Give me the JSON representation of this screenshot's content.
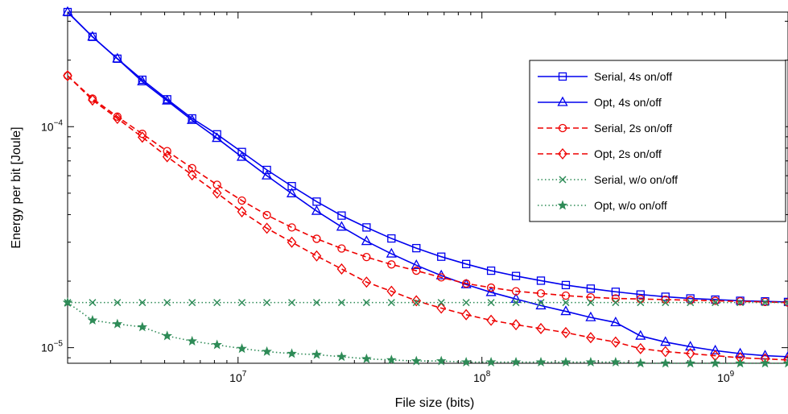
{
  "chart_data": {
    "type": "line",
    "title": "",
    "xlabel": "File size (bits)",
    "ylabel": "Energy per bit [Joule]",
    "xscale": "log",
    "yscale": "log",
    "xlim": [
      2000000,
      1800000000
    ],
    "ylim": [
      8.5e-06,
      0.00033
    ],
    "grid": false,
    "legend_position": "top-right",
    "x_ticks": [
      {
        "value": 10000000,
        "base": "10",
        "exp": "7"
      },
      {
        "value": 100000000,
        "base": "10",
        "exp": "8"
      },
      {
        "value": 1000000000,
        "base": "10",
        "exp": "9"
      }
    ],
    "y_ticks": [
      {
        "value": 1e-05,
        "base": "10",
        "exp": "−5"
      },
      {
        "value": 0.0001,
        "base": "10",
        "exp": "−4"
      }
    ],
    "x": [
      2000000,
      2530000,
      3200000,
      4050000,
      5120000,
      6480000,
      8200000,
      10370000,
      13130000,
      16610000,
      21010000,
      26590000,
      33640000,
      42560000,
      53850000,
      68130000,
      86190000,
      109050000,
      137970000,
      174560000,
      220850000,
      279410000,
      353500000,
      447250000,
      565840000,
      715880000,
      905710000,
      1145900000,
      1449700000,
      1800000000
    ],
    "series": [
      {
        "name": "Serial, 4s on/off",
        "color": "#0000ee",
        "dash": "solid",
        "marker": "square",
        "values": [
          0.00033,
          0.000255,
          0.000203,
          0.000163,
          0.000133,
          0.000109,
          9.23e-05,
          7.68e-05,
          6.37e-05,
          5.38e-05,
          4.58e-05,
          3.96e-05,
          3.5e-05,
          3.12e-05,
          2.82e-05,
          2.58e-05,
          2.39e-05,
          2.23e-05,
          2.11e-05,
          2.01e-05,
          1.92e-05,
          1.85e-05,
          1.79e-05,
          1.74e-05,
          1.7e-05,
          1.67e-05,
          1.65e-05,
          1.63e-05,
          1.62e-05,
          1.61e-05
        ]
      },
      {
        "name": "Opt, 4s on/off",
        "color": "#0000ee",
        "dash": "solid",
        "marker": "triangle",
        "values": [
          0.00033,
          0.000255,
          0.000203,
          0.00016,
          0.000131,
          0.000107,
          8.87e-05,
          7.29e-05,
          6e-05,
          4.98e-05,
          4.15e-05,
          3.52e-05,
          3.03e-05,
          2.66e-05,
          2.36e-05,
          2.12e-05,
          1.93e-05,
          1.78e-05,
          1.66e-05,
          1.55e-05,
          1.46e-05,
          1.37e-05,
          1.3e-05,
          1.13e-05,
          1.06e-05,
          1.01e-05,
          9.7e-06,
          9.4e-06,
          9.2e-06,
          9.1e-06
        ]
      },
      {
        "name": "Serial, 2s on/off",
        "color": "#ee0000",
        "dash": "dashed",
        "marker": "circle",
        "values": [
          0.00017,
          0.000134,
          0.000111,
          9.28e-05,
          7.75e-05,
          6.49e-05,
          5.46e-05,
          4.63e-05,
          3.98e-05,
          3.5e-05,
          3.11e-05,
          2.81e-05,
          2.57e-05,
          2.38e-05,
          2.23e-05,
          2.08e-05,
          1.95e-05,
          1.87e-05,
          1.8e-05,
          1.76e-05,
          1.72e-05,
          1.69e-05,
          1.67e-05,
          1.66e-05,
          1.65e-05,
          1.64e-05,
          1.63e-05,
          1.62e-05,
          1.61e-05,
          1.6e-05
        ]
      },
      {
        "name": "Opt, 2s on/off",
        "color": "#ee0000",
        "dash": "dashed",
        "marker": "diamond",
        "values": [
          0.00017,
          0.000132,
          0.000109,
          8.96e-05,
          7.31e-05,
          6.05e-05,
          5.01e-05,
          4.12e-05,
          3.47e-05,
          3e-05,
          2.6e-05,
          2.27e-05,
          1.98e-05,
          1.8e-05,
          1.63e-05,
          1.51e-05,
          1.41e-05,
          1.33e-05,
          1.27e-05,
          1.22e-05,
          1.17e-05,
          1.11e-05,
          1.06e-05,
          9.9e-06,
          9.6e-06,
          9.4e-06,
          9.2e-06,
          9e-06,
          8.9e-06,
          8.8e-06
        ]
      },
      {
        "name": "Serial, w/o on/off",
        "color": "#2e8b57",
        "dash": "dotted",
        "marker": "x",
        "values": [
          1.6e-05,
          1.6e-05,
          1.6e-05,
          1.6e-05,
          1.6e-05,
          1.6e-05,
          1.6e-05,
          1.6e-05,
          1.6e-05,
          1.6e-05,
          1.6e-05,
          1.6e-05,
          1.6e-05,
          1.6e-05,
          1.6e-05,
          1.6e-05,
          1.6e-05,
          1.6e-05,
          1.6e-05,
          1.6e-05,
          1.6e-05,
          1.6e-05,
          1.6e-05,
          1.6e-05,
          1.6e-05,
          1.6e-05,
          1.6e-05,
          1.6e-05,
          1.6e-05,
          1.6e-05
        ]
      },
      {
        "name": "Opt, w/o on/off",
        "color": "#2e8b57",
        "dash": "dotted",
        "marker": "star",
        "values": [
          1.6e-05,
          1.33e-05,
          1.28e-05,
          1.24e-05,
          1.13e-05,
          1.07e-05,
          1.03e-05,
          9.9e-06,
          9.6e-06,
          9.4e-06,
          9.3e-06,
          9.1e-06,
          8.9e-06,
          8.8e-06,
          8.7e-06,
          8.7e-06,
          8.6e-06,
          8.6e-06,
          8.6e-06,
          8.6e-06,
          8.6e-06,
          8.6e-06,
          8.6e-06,
          8.5e-06,
          8.5e-06,
          8.5e-06,
          8.5e-06,
          8.5e-06,
          8.5e-06,
          8.5e-06
        ]
      }
    ]
  }
}
